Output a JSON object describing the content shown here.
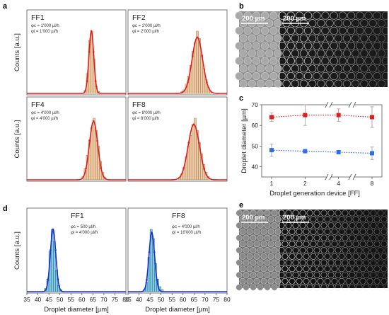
{
  "figure": {
    "panel_labels": [
      "a",
      "b",
      "c",
      "d",
      "e"
    ],
    "scale_bar_text": "200 µm",
    "colors": {
      "bar_tan": "#efc9a1",
      "bar_tan_edge": "#9a7a55",
      "bar_blue": "#7fcde0",
      "bar_blue_edge": "#2a5a8a",
      "fit_red": "#e11d1d",
      "fit_blue": "#1c30c8",
      "marker_red": "#e11d1d",
      "marker_blue": "#2f6cf0",
      "errorbar": "#9a9a9a"
    }
  },
  "chart_data": [
    {
      "panel": "a",
      "type": "bar",
      "title": "FF1",
      "flow_lines": [
        "φc = 1'000 µl/h",
        "φi = 1'000 µl/h"
      ],
      "ylabel": "Counts [a.u.]",
      "xlim": [
        35,
        80
      ],
      "bin_centers": [
        61.5,
        62.5,
        63.5,
        64.5,
        65.5,
        66.5,
        67.5
      ],
      "values": [
        0.05,
        0.32,
        0.85,
        1.0,
        0.55,
        0.12,
        0.03
      ],
      "fit": {
        "mu": 64.3,
        "sigma": 1.1,
        "amp": 1.0
      }
    },
    {
      "panel": "a",
      "type": "bar",
      "title": "FF2",
      "flow_lines": [
        "φc = 2'000 µl/h",
        "φi = 2'000 µl/h"
      ],
      "xlim": [
        35,
        80
      ],
      "bin_centers": [
        59.5,
        60.5,
        61.5,
        62.5,
        63.5,
        64.5,
        65.5,
        66.5,
        67.5,
        68.5,
        69.5,
        70.5,
        71.5,
        72.5
      ],
      "values": [
        0.03,
        0.06,
        0.15,
        0.28,
        0.45,
        0.68,
        0.82,
        1.0,
        0.88,
        0.62,
        0.4,
        0.22,
        0.1,
        0.04
      ],
      "fit": {
        "mu": 66.5,
        "sigma": 2.4,
        "amp": 0.9
      }
    },
    {
      "panel": "a",
      "type": "bar",
      "title": "FF4",
      "flow_lines": [
        "φc = 4'000 µl/h",
        "φi = 4'000 µl/h"
      ],
      "ylabel": "Counts [a.u.]",
      "xlim": [
        35,
        80
      ],
      "bin_centers": [
        60.5,
        61.5,
        62.5,
        63.5,
        64.5,
        65.5,
        66.5,
        67.5,
        68.5,
        69.5,
        70.5
      ],
      "values": [
        0.05,
        0.18,
        0.4,
        0.65,
        0.85,
        1.0,
        0.8,
        0.55,
        0.3,
        0.12,
        0.04
      ],
      "fit": {
        "mu": 65.3,
        "sigma": 1.9,
        "amp": 0.95
      }
    },
    {
      "panel": "a",
      "type": "bar",
      "title": "FF8",
      "flow_lines": [
        "φc = 8'000 µl/h",
        "φi = 8'000 µl/h"
      ],
      "xlim": [
        35,
        80
      ],
      "bin_centers": [
        58.5,
        59.5,
        60.5,
        61.5,
        62.5,
        63.5,
        64.5,
        65.5,
        66.5,
        67.5,
        68.5,
        69.5,
        70.5,
        71.5
      ],
      "values": [
        0.04,
        0.1,
        0.2,
        0.38,
        0.55,
        0.72,
        0.9,
        1.0,
        0.8,
        0.6,
        0.42,
        0.25,
        0.12,
        0.05
      ],
      "fit": {
        "mu": 64.9,
        "sigma": 2.6,
        "amp": 0.9
      }
    },
    {
      "panel": "c",
      "type": "line",
      "xlabel": "Droplet generation device [FF]",
      "ylabel": "Droplet diameter [µm]",
      "ylim": [
        35,
        70
      ],
      "y_ticks": [
        40,
        50,
        60,
        70
      ],
      "categories": [
        "1",
        "2",
        "4",
        "8"
      ],
      "series": [
        {
          "values": [
            64,
            65,
            65,
            64
          ],
          "error": [
            2,
            5,
            3,
            5
          ]
        },
        {
          "values": [
            48,
            47.5,
            47,
            46.5
          ],
          "error": [
            3,
            0,
            0,
            3
          ]
        }
      ],
      "axis_breaks": true
    },
    {
      "panel": "d",
      "type": "bar",
      "title": "FF1",
      "flow_lines": [
        "φc =   500 µl/h",
        "φi = 4'000 µl/h"
      ],
      "ylabel": "Counts [a.u.]",
      "xlabel": "Droplet diameter [µm]",
      "xlim": [
        35,
        80
      ],
      "x_ticks": [
        35,
        40,
        45,
        50,
        55,
        60,
        65,
        70,
        75,
        80
      ],
      "bin_centers": [
        43.5,
        44.5,
        45.5,
        46.5,
        47.5,
        48.5,
        49.5,
        50.5
      ],
      "values": [
        0.05,
        0.2,
        0.65,
        1.0,
        0.8,
        0.35,
        0.1,
        0.03
      ],
      "fit": {
        "mu": 46.9,
        "sigma": 1.25,
        "amp": 1.0
      }
    },
    {
      "panel": "d",
      "type": "bar",
      "title": "FF8",
      "flow_lines": [
        "φc = 4'000 µl/h",
        "φi = 16'000 µl/h"
      ],
      "xlabel": "Droplet diameter [µm]",
      "xlim": [
        35,
        80
      ],
      "x_ticks": [
        35,
        40,
        45,
        50,
        55,
        60,
        65,
        70,
        75,
        80
      ],
      "bin_centers": [
        42.5,
        43.5,
        44.5,
        45.5,
        46.5,
        47.5,
        48.5,
        49.5,
        50.5
      ],
      "values": [
        0.04,
        0.15,
        0.55,
        1.0,
        0.85,
        0.45,
        0.2,
        0.08,
        0.03
      ],
      "fit": {
        "mu": 45.8,
        "sigma": 1.3,
        "amp": 0.95
      }
    }
  ]
}
